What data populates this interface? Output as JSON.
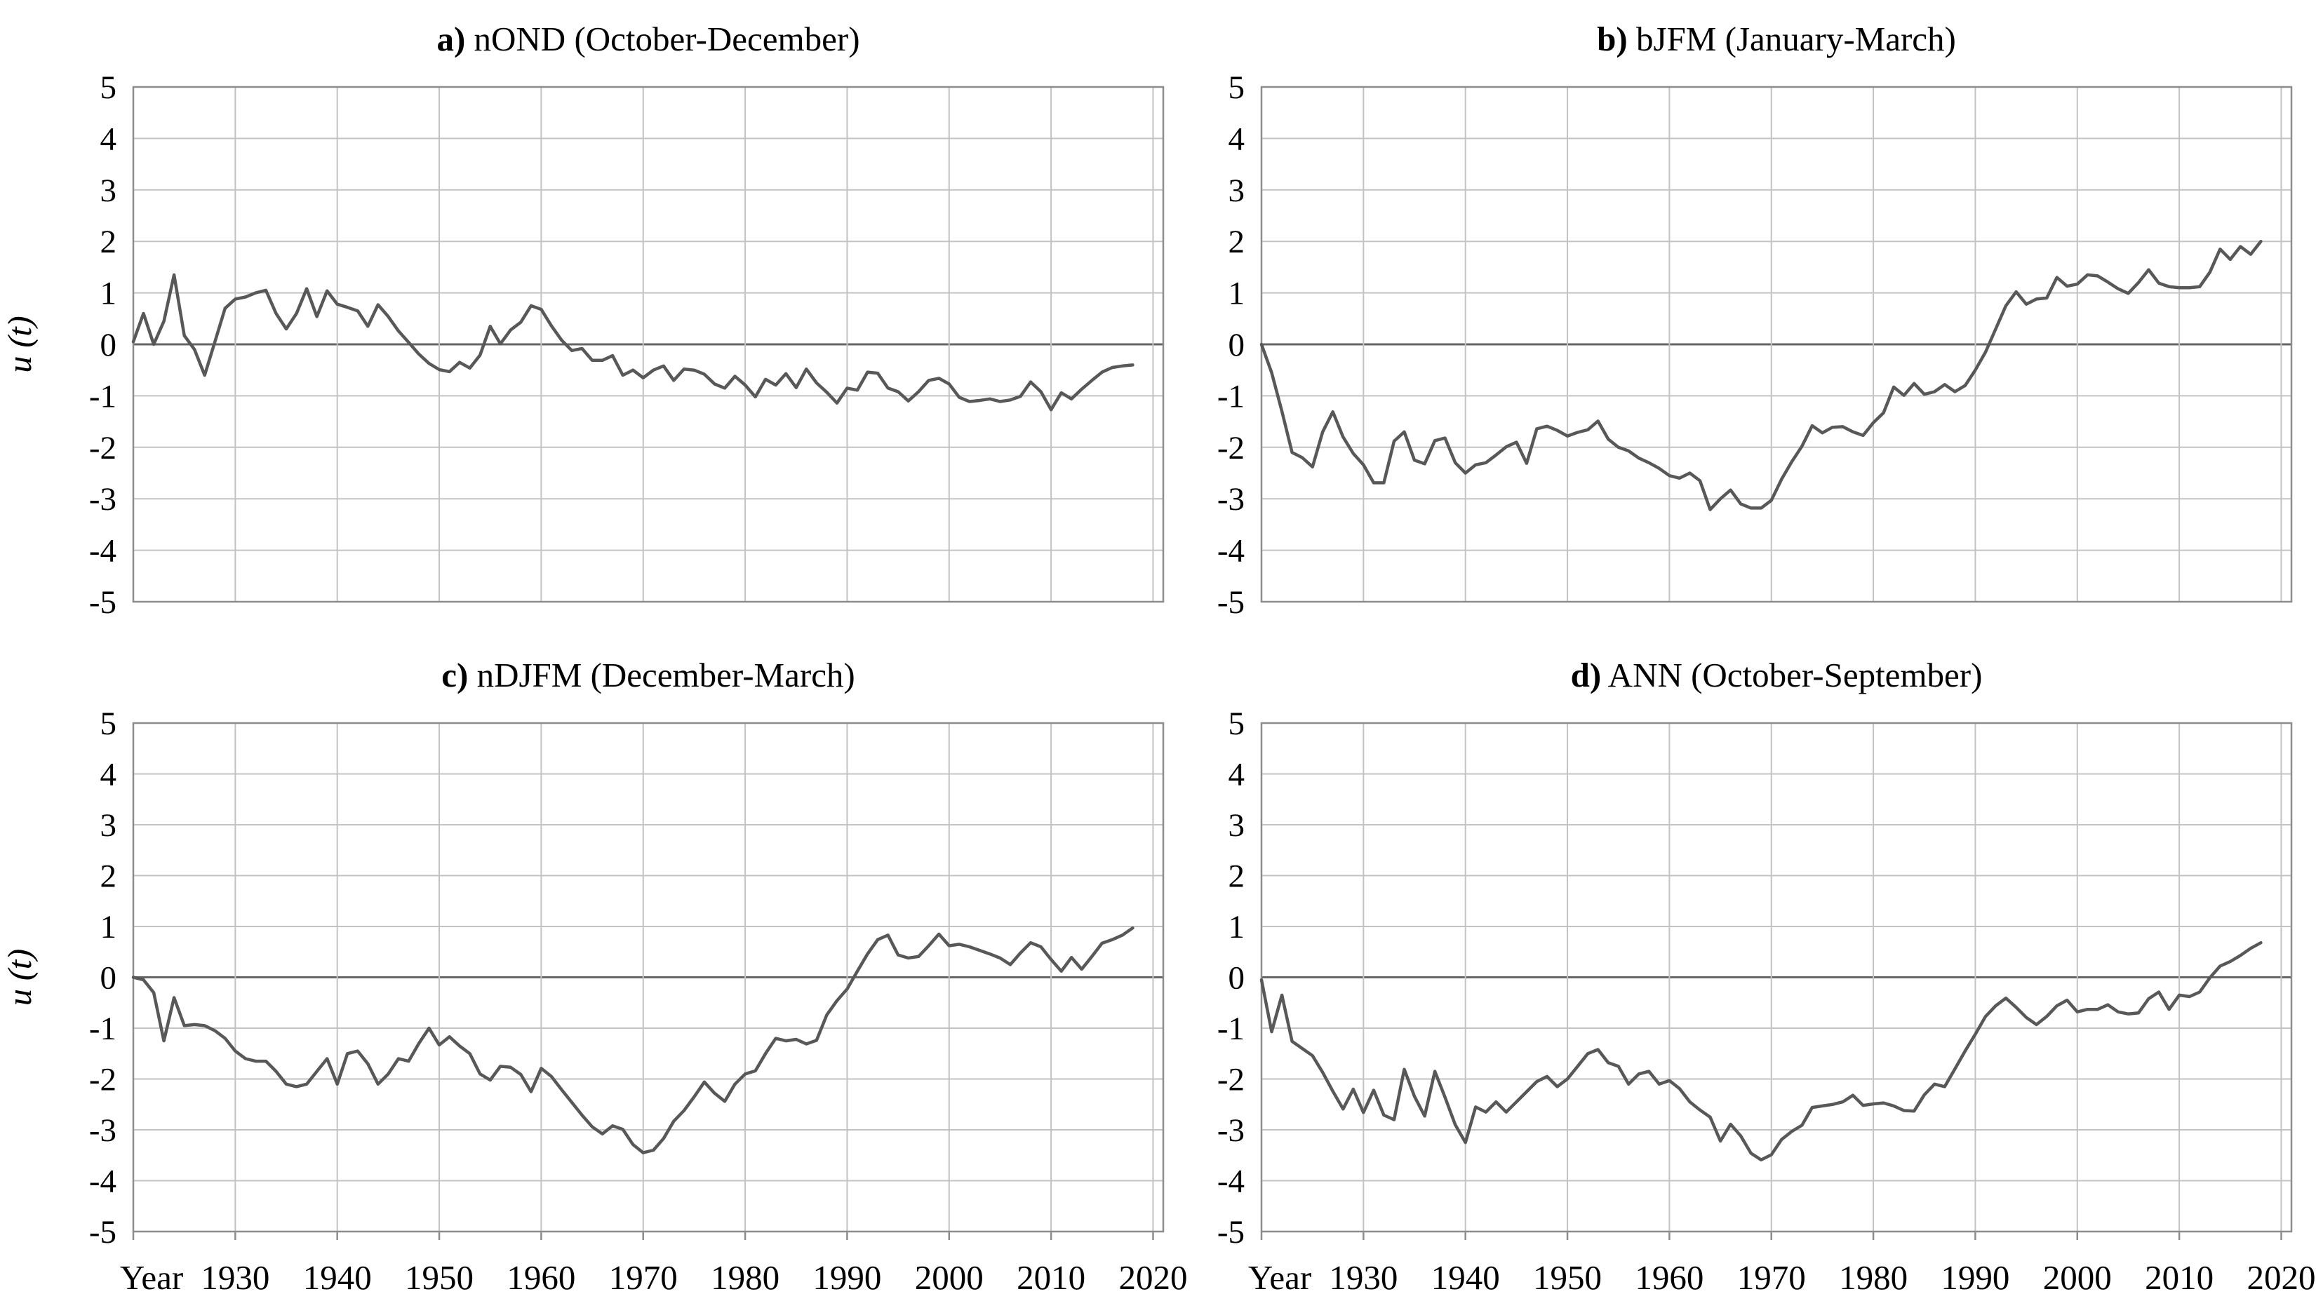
{
  "figure": {
    "ylabel": "u (t)",
    "colors": {
      "series": "#585858",
      "grid": "#c3c3c3",
      "border": "#8d8d8d",
      "zero_axis": "#666666",
      "text": "#000000",
      "background": "#ffffff"
    }
  },
  "chart_data": [
    {
      "type": "line",
      "title_prefix": "a)",
      "title": " nOND (October-December)",
      "xlabel": "",
      "ylabel": "u (t)",
      "x_start": 1920,
      "x_step": 1,
      "xlim": [
        1920,
        2021
      ],
      "ylim": [
        -5,
        5
      ],
      "grid": true,
      "yticks": [
        5,
        4,
        3,
        2,
        1,
        0,
        -1,
        -2,
        -3,
        -4,
        -5
      ],
      "xtick_years": [
        1920,
        1930,
        1940,
        1950,
        1960,
        1970,
        1980,
        1990,
        2000,
        2010,
        2020
      ],
      "xtick_labels": [
        "Year",
        "1930",
        "1940",
        "1950",
        "1960",
        "1970",
        "1980",
        "1990",
        "2000",
        "2010",
        "2020"
      ],
      "show_x_labels": false,
      "values": [
        0.05,
        0.6,
        0,
        0.45,
        1.35,
        0.17,
        -0.1,
        -0.6,
        0.05,
        0.7,
        0.88,
        0.92,
        1,
        1.05,
        0.6,
        0.3,
        0.6,
        1.08,
        0.54,
        1.04,
        0.78,
        0.72,
        0.65,
        0.35,
        0.77,
        0.54,
        0.26,
        0.04,
        -0.19,
        -0.37,
        -0.49,
        -0.53,
        -0.35,
        -0.46,
        -0.21,
        0.35,
        0.01,
        0.28,
        0.43,
        0.75,
        0.68,
        0.36,
        0.08,
        -0.12,
        -0.08,
        -0.31,
        -0.31,
        -0.22,
        -0.6,
        -0.5,
        -0.65,
        -0.5,
        -0.42,
        -0.7,
        -0.48,
        -0.5,
        -0.58,
        -0.77,
        -0.85,
        -0.62,
        -0.79,
        -1.02,
        -0.68,
        -0.79,
        -0.57,
        -0.84,
        -0.48,
        -0.75,
        -0.93,
        -1.14,
        -0.85,
        -0.89,
        -0.54,
        -0.56,
        -0.85,
        -0.92,
        -1.1,
        -0.92,
        -0.7,
        -0.66,
        -0.77,
        -1.03,
        -1.11,
        -1.09,
        -1.06,
        -1.11,
        -1.08,
        -1.01,
        -0.73,
        -0.92,
        -1.27,
        -0.94,
        -1.06,
        -0.87,
        -0.7,
        -0.54,
        -0.45,
        -0.42,
        -0.4
      ]
    },
    {
      "type": "line",
      "title_prefix": "b)",
      "title": " bJFM (January-March)",
      "xlabel": "",
      "ylabel": "u (t)",
      "x_start": 1920,
      "x_step": 1,
      "xlim": [
        1920,
        2021
      ],
      "ylim": [
        -5,
        5
      ],
      "grid": true,
      "yticks": [
        5,
        4,
        3,
        2,
        1,
        0,
        -1,
        -2,
        -3,
        -4,
        -5
      ],
      "xtick_years": [
        1920,
        1930,
        1940,
        1950,
        1960,
        1970,
        1980,
        1990,
        2000,
        2010,
        2020
      ],
      "xtick_labels": [
        "Year",
        "1930",
        "1940",
        "1950",
        "1960",
        "1970",
        "1980",
        "1990",
        "2000",
        "2010",
        "2020"
      ],
      "show_x_labels": false,
      "values": [
        0,
        -0.55,
        -1.3,
        -2.1,
        -2.2,
        -2.38,
        -1.7,
        -1.31,
        -1.8,
        -2.12,
        -2.34,
        -2.69,
        -2.69,
        -1.88,
        -1.7,
        -2.25,
        -2.32,
        -1.87,
        -1.82,
        -2.3,
        -2.5,
        -2.34,
        -2.3,
        -2.15,
        -1.99,
        -1.9,
        -2.31,
        -1.64,
        -1.59,
        -1.67,
        -1.78,
        -1.71,
        -1.66,
        -1.49,
        -1.84,
        -2,
        -2.07,
        -2.21,
        -2.3,
        -2.41,
        -2.55,
        -2.6,
        -2.5,
        -2.65,
        -3.21,
        -3,
        -2.83,
        -3.1,
        -3.18,
        -3.18,
        -3.03,
        -2.62,
        -2.28,
        -1.98,
        -1.58,
        -1.72,
        -1.61,
        -1.6,
        -1.7,
        -1.77,
        -1.52,
        -1.33,
        -0.83,
        -0.99,
        -0.76,
        -0.97,
        -0.92,
        -0.78,
        -0.92,
        -0.8,
        -0.5,
        -0.15,
        0.3,
        0.75,
        1.02,
        0.78,
        0.88,
        0.9,
        1.3,
        1.13,
        1.17,
        1.35,
        1.33,
        1.21,
        1.08,
        0.99,
        1.2,
        1.45,
        1.19,
        1.12,
        1.1,
        1.1,
        1.12,
        1.4,
        1.85,
        1.65,
        1.9,
        1.75,
        2
      ]
    },
    {
      "type": "line",
      "title_prefix": "c)",
      "title": " nDJFM (December-March)",
      "xlabel": "Year",
      "ylabel": "u (t)",
      "x_start": 1920,
      "x_step": 1,
      "xlim": [
        1920,
        2021
      ],
      "ylim": [
        -5,
        5
      ],
      "grid": true,
      "yticks": [
        5,
        4,
        3,
        2,
        1,
        0,
        -1,
        -2,
        -3,
        -4,
        -5
      ],
      "xtick_years": [
        1920,
        1930,
        1940,
        1950,
        1960,
        1970,
        1980,
        1990,
        2000,
        2010,
        2020
      ],
      "xtick_labels": [
        "Year",
        "1930",
        "1940",
        "1950",
        "1960",
        "1970",
        "1980",
        "1990",
        "2000",
        "2010",
        "2020"
      ],
      "show_x_labels": true,
      "values": [
        0,
        -0.05,
        -0.3,
        -1.25,
        -0.4,
        -0.95,
        -0.93,
        -0.95,
        -1.05,
        -1.2,
        -1.45,
        -1.6,
        -1.65,
        -1.65,
        -1.85,
        -2.1,
        -2.15,
        -2.1,
        -1.85,
        -1.6,
        -2.1,
        -1.5,
        -1.45,
        -1.7,
        -2.1,
        -1.9,
        -1.6,
        -1.65,
        -1.3,
        -1,
        -1.33,
        -1.17,
        -1.35,
        -1.5,
        -1.9,
        -2.02,
        -1.75,
        -1.77,
        -1.91,
        -2.25,
        -1.79,
        -1.95,
        -2.21,
        -2.46,
        -2.71,
        -2.94,
        -3.08,
        -2.92,
        -2.99,
        -3.29,
        -3.45,
        -3.4,
        -3.17,
        -2.83,
        -2.62,
        -2.35,
        -2.06,
        -2.28,
        -2.44,
        -2.1,
        -1.9,
        -1.84,
        -1.5,
        -1.2,
        -1.25,
        -1.22,
        -1.31,
        -1.24,
        -0.74,
        -0.46,
        -0.23,
        0.12,
        0.46,
        0.74,
        0.83,
        0.44,
        0.38,
        0.41,
        0.62,
        0.85,
        0.62,
        0.65,
        0.6,
        0.53,
        0.46,
        0.38,
        0.25,
        0.48,
        0.68,
        0.6,
        0.35,
        0.12,
        0.39,
        0.16,
        0.41,
        0.67,
        0.74,
        0.83,
        0.97
      ]
    },
    {
      "type": "line",
      "title_prefix": "d)",
      "title": " ANN (October-September)",
      "xlabel": "Year",
      "ylabel": "u (t)",
      "x_start": 1920,
      "x_step": 1,
      "xlim": [
        1920,
        2021
      ],
      "ylim": [
        -5,
        5
      ],
      "grid": true,
      "yticks": [
        5,
        4,
        3,
        2,
        1,
        0,
        -1,
        -2,
        -3,
        -4,
        -5
      ],
      "xtick_years": [
        1920,
        1930,
        1940,
        1950,
        1960,
        1970,
        1980,
        1990,
        2000,
        2010,
        2020
      ],
      "xtick_labels": [
        "Year",
        "1930",
        "1940",
        "1950",
        "1960",
        "1970",
        "1980",
        "1990",
        "2000",
        "2010",
        "2020"
      ],
      "show_x_labels": true,
      "values": [
        -0.05,
        -1.07,
        -0.35,
        -1.26,
        -1.4,
        -1.54,
        -1.87,
        -2.24,
        -2.59,
        -2.2,
        -2.66,
        -2.22,
        -2.71,
        -2.8,
        -1.81,
        -2.34,
        -2.73,
        -1.85,
        -2.36,
        -2.9,
        -3.25,
        -2.55,
        -2.65,
        -2.45,
        -2.65,
        -2.45,
        -2.25,
        -2.05,
        -1.95,
        -2.15,
        -2,
        -1.75,
        -1.5,
        -1.42,
        -1.68,
        -1.75,
        -2.1,
        -1.9,
        -1.85,
        -2.1,
        -2.03,
        -2.19,
        -2.45,
        -2.61,
        -2.75,
        -3.22,
        -2.89,
        -3.12,
        -3.46,
        -3.59,
        -3.49,
        -3.19,
        -3.03,
        -2.91,
        -2.56,
        -2.53,
        -2.5,
        -2.45,
        -2.32,
        -2.52,
        -2.49,
        -2.47,
        -2.53,
        -2.62,
        -2.63,
        -2.31,
        -2.1,
        -2.15,
        -1.8,
        -1.45,
        -1.12,
        -0.77,
        -0.56,
        -0.41,
        -0.59,
        -0.79,
        -0.93,
        -0.77,
        -0.56,
        -0.45,
        -0.68,
        -0.63,
        -0.63,
        -0.54,
        -0.68,
        -0.72,
        -0.7,
        -0.42,
        -0.29,
        -0.63,
        -0.35,
        -0.38,
        -0.29,
        -0.01,
        0.22,
        0.31,
        0.43,
        0.57,
        0.68
      ]
    }
  ]
}
